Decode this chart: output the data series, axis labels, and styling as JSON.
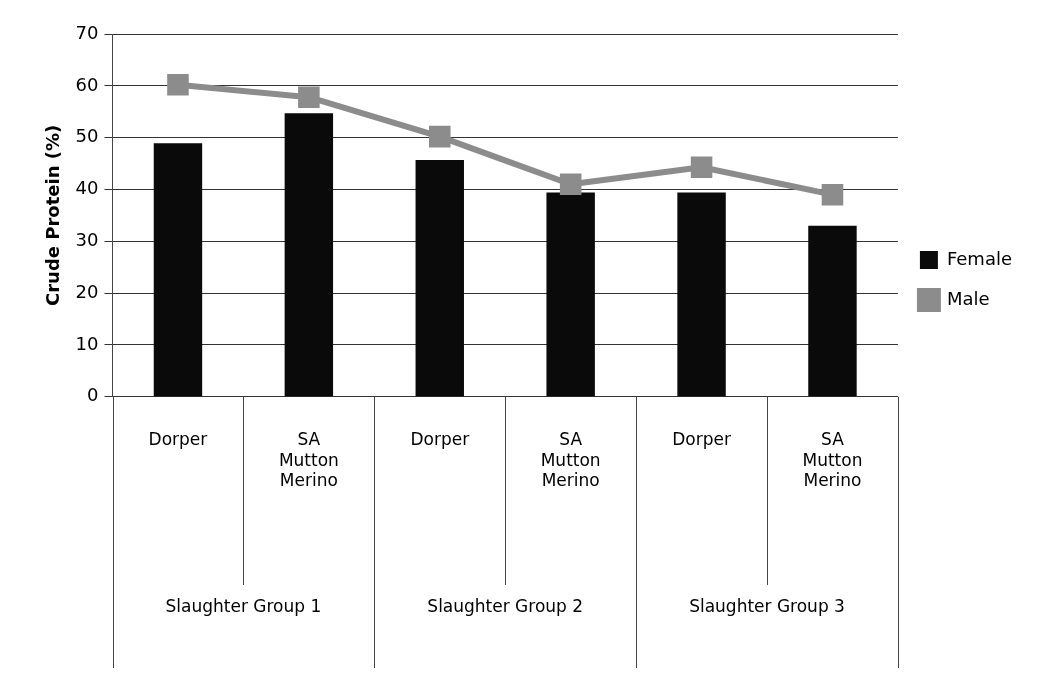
{
  "chart_data": {
    "type": "bar",
    "ylabel": "Crude Protein (%)",
    "categories": [
      "Dorper",
      "SA Mutton Merino",
      "Dorper",
      "SA Mutton Merino",
      "Dorper",
      "SA Mutton Merino"
    ],
    "series": [
      {
        "name": "Female",
        "color": "#0a0a0a",
        "values": [
          48.9,
          54.7,
          45.7,
          39.4,
          39.4,
          33.0
        ]
      },
      {
        "name": "Male",
        "type": "line",
        "color": "#8c8c8c",
        "values": [
          60.2,
          57.8,
          50.2,
          41.0,
          44.3,
          39.0
        ]
      }
    ],
    "annotations": [
      "Slaughter Group 1",
      "Slaughter Group 2",
      "Slaughter Group 3"
    ],
    "ylim": [
      0,
      70
    ],
    "yticks": [
      0,
      10,
      20,
      30,
      40,
      50,
      60,
      70
    ],
    "grid": "y",
    "legend": "right",
    "marker": "square",
    "line_style": "solid"
  }
}
